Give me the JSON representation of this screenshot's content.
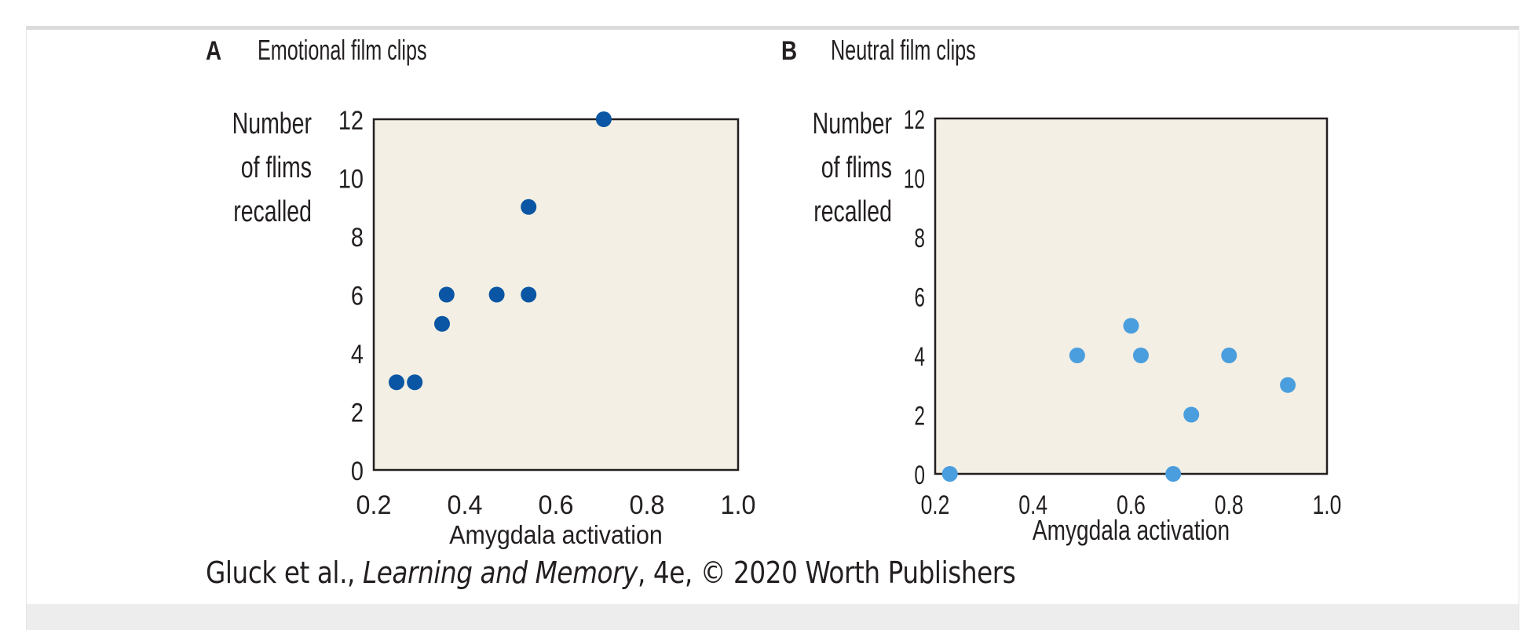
{
  "chart_data": [
    {
      "type": "scatter",
      "panel_letter": "A",
      "title": "Emotional film clips",
      "xlabel": "Amygdala activation",
      "ylabel_lines": [
        "Number",
        "of flims",
        "recalled"
      ],
      "xlim": [
        0.2,
        1.0
      ],
      "ylim": [
        0,
        12
      ],
      "xticks": [
        "0.2",
        "0.4",
        "0.6",
        "0.8",
        "1.0"
      ],
      "yticks": [
        "0",
        "2",
        "4",
        "6",
        "8",
        "10",
        "12"
      ],
      "grid": false,
      "point_color": "#0a56a4",
      "points": [
        {
          "x": 0.25,
          "y": 3
        },
        {
          "x": 0.29,
          "y": 3
        },
        {
          "x": 0.35,
          "y": 5
        },
        {
          "x": 0.36,
          "y": 6
        },
        {
          "x": 0.47,
          "y": 6
        },
        {
          "x": 0.54,
          "y": 6
        },
        {
          "x": 0.54,
          "y": 9
        },
        {
          "x": 0.705,
          "y": 12
        }
      ]
    },
    {
      "type": "scatter",
      "panel_letter": "B",
      "title": "Neutral film clips",
      "xlabel": "Amygdala activation",
      "ylabel_lines": [
        "Number",
        "of flims",
        "recalled"
      ],
      "xlim": [
        0.2,
        1.0
      ],
      "ylim": [
        0,
        12
      ],
      "xticks": [
        "0.2",
        "0.4",
        "0.6",
        "0.8",
        "1.0"
      ],
      "yticks": [
        "0",
        "2",
        "4",
        "6",
        "8",
        "10",
        "12"
      ],
      "grid": false,
      "point_color": "#4a9ede",
      "points": [
        {
          "x": 0.23,
          "y": 0
        },
        {
          "x": 0.49,
          "y": 4
        },
        {
          "x": 0.6,
          "y": 5
        },
        {
          "x": 0.62,
          "y": 4
        },
        {
          "x": 0.686,
          "y": 0
        },
        {
          "x": 0.723,
          "y": 2
        },
        {
          "x": 0.8,
          "y": 4
        },
        {
          "x": 0.92,
          "y": 3
        }
      ]
    }
  ],
  "caption": {
    "prefix": "Gluck et al., ",
    "book": "Learning and Memory",
    "suffix": ", 4e, © 2020 Worth Publishers"
  },
  "colors": {
    "plot_bg": "#f3efe4",
    "axis": "#231f20"
  }
}
